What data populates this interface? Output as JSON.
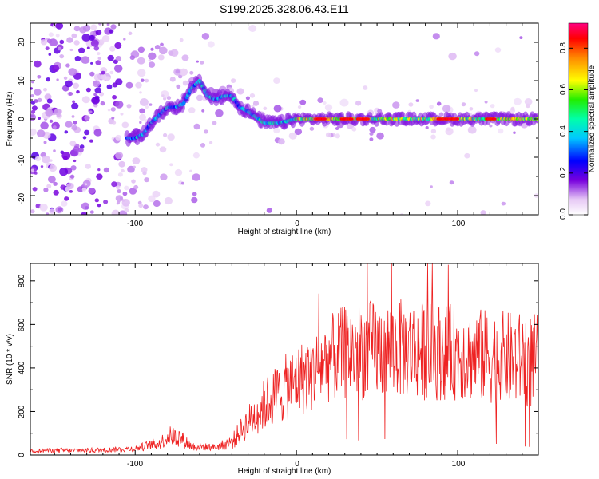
{
  "figure_title": "S199.2025.328.06.43.E11",
  "chart_data": [
    {
      "type": "heatmap",
      "title": "S199.2025.328.06.43.E11",
      "xlabel": "Height of straight line (km)",
      "ylabel": "Frequency (Hz)",
      "xlim": [
        -165,
        150
      ],
      "ylim": [
        -25,
        25
      ],
      "x_ticks": [
        "-100",
        "0",
        "100"
      ],
      "y_ticks": [
        "-20",
        "-10",
        "0",
        "10",
        "20"
      ],
      "colorbar": {
        "label": "Normalized spectral amplitude",
        "range": [
          0.0,
          0.92
        ],
        "ticks": [
          "0.0",
          "0.2",
          "0.4",
          "0.6",
          "0.8"
        ]
      },
      "ridge": {
        "description_points": [
          [
            -100,
            -5
          ],
          [
            -95,
            -4
          ],
          [
            -90,
            -1
          ],
          [
            -85,
            1
          ],
          [
            -80,
            3
          ],
          [
            -75,
            3
          ],
          [
            -70,
            4
          ],
          [
            -65,
            8
          ],
          [
            -60,
            10
          ],
          [
            -55,
            6
          ],
          [
            -50,
            5
          ],
          [
            -45,
            6
          ],
          [
            -40,
            6
          ],
          [
            -35,
            3
          ],
          [
            -30,
            2
          ],
          [
            -25,
            0.5
          ],
          [
            -20,
            -1
          ],
          [
            -10,
            -1
          ],
          [
            0,
            0
          ],
          [
            10,
            0
          ],
          [
            50,
            0
          ],
          [
            100,
            0
          ],
          [
            150,
            0
          ]
        ]
      }
    },
    {
      "type": "line",
      "xlabel": "Height of straight line (km)",
      "ylabel": "SNR (10 * v/v)",
      "xlim": [
        -165,
        150
      ],
      "ylim": [
        0,
        880
      ],
      "x_ticks": [
        "-100",
        "0",
        "100"
      ],
      "y_ticks": [
        "0",
        "200",
        "400",
        "600",
        "800"
      ],
      "series": [
        {
          "name": "SNR",
          "color": "#ee2222",
          "envelope": {
            "x": [
              -165,
              -120,
              -100,
              -85,
              -78,
              -72,
              -65,
              -50,
              -40,
              -30,
              -20,
              -10,
              0,
              10,
              20,
              30,
              40,
              60,
              80,
              100,
              120,
              150
            ],
            "mean": [
              20,
              22,
              30,
              55,
              90,
              80,
              40,
              35,
              60,
              150,
              230,
              290,
              340,
              380,
              440,
              470,
              480,
              490,
              480,
              470,
              450,
              430
            ],
            "spread": [
              10,
              12,
              14,
              30,
              45,
              45,
              20,
              15,
              35,
              80,
              120,
              150,
              170,
              180,
              200,
              220,
              230,
              230,
              230,
              220,
              220,
              220
            ]
          }
        }
      ]
    }
  ]
}
